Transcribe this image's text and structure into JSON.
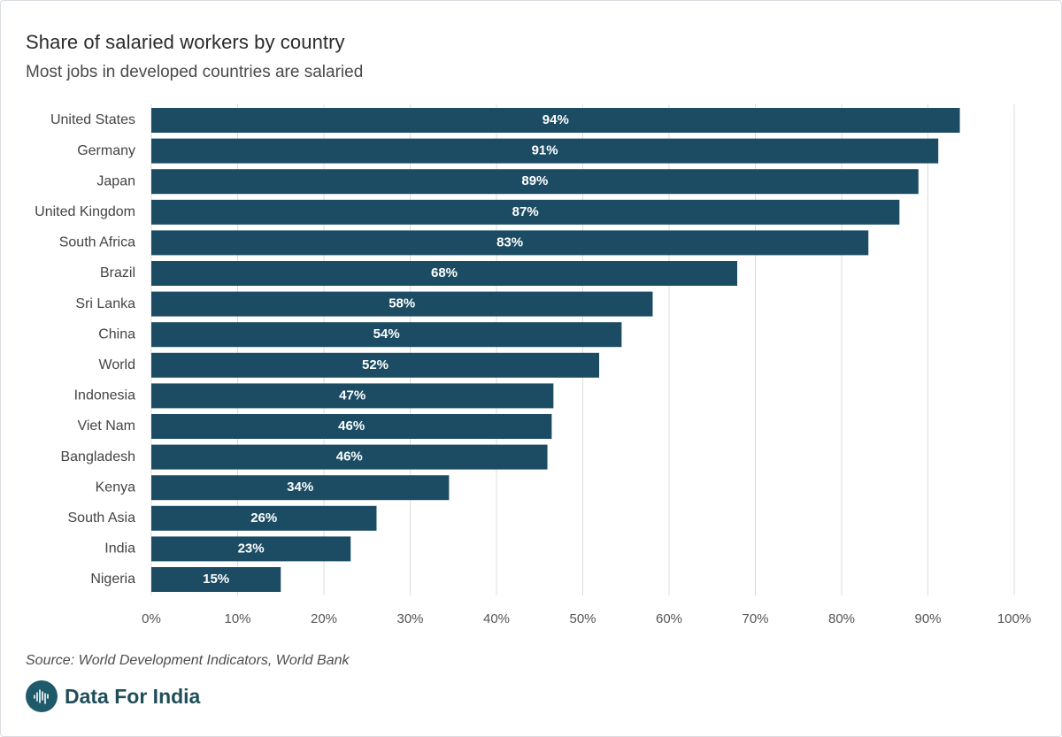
{
  "header": {
    "title": "Share of salaried workers by country",
    "subtitle": "Most jobs in developed countries are salaried"
  },
  "footer": {
    "source": "Source: World Development Indicators, World Bank",
    "brand": "Data For India"
  },
  "colors": {
    "bar": "#1b4c63",
    "bar_label": "#ffffff",
    "grid": "#dcdcdc",
    "axis_text": "#555555",
    "category_text": "#444444"
  },
  "chart_data": {
    "type": "bar",
    "orientation": "horizontal",
    "title": "Share of salaried workers by country",
    "subtitle": "Most jobs in developed countries are salaried",
    "xlabel": "",
    "ylabel": "",
    "xlim": [
      0,
      100
    ],
    "grid": true,
    "categories": [
      "United States",
      "Germany",
      "Japan",
      "United Kingdom",
      "South Africa",
      "Brazil",
      "Sri Lanka",
      "China",
      "World",
      "Indonesia",
      "Viet Nam",
      "Bangladesh",
      "Kenya",
      "South Asia",
      "India",
      "Nigeria"
    ],
    "values": [
      93.7,
      91.2,
      88.9,
      86.7,
      83.1,
      67.9,
      58.1,
      54.5,
      51.9,
      46.6,
      46.4,
      45.9,
      34.5,
      26.1,
      23.1,
      15.0
    ],
    "data_labels": [
      "94%",
      "91%",
      "89%",
      "87%",
      "83%",
      "68%",
      "58%",
      "54%",
      "52%",
      "47%",
      "46%",
      "46%",
      "34%",
      "26%",
      "23%",
      "15%"
    ],
    "ticks": [
      0,
      10,
      20,
      30,
      40,
      50,
      60,
      70,
      80,
      90,
      100
    ],
    "tick_labels": [
      "0%",
      "10%",
      "20%",
      "30%",
      "40%",
      "50%",
      "60%",
      "70%",
      "80%",
      "90%",
      "100%"
    ]
  }
}
